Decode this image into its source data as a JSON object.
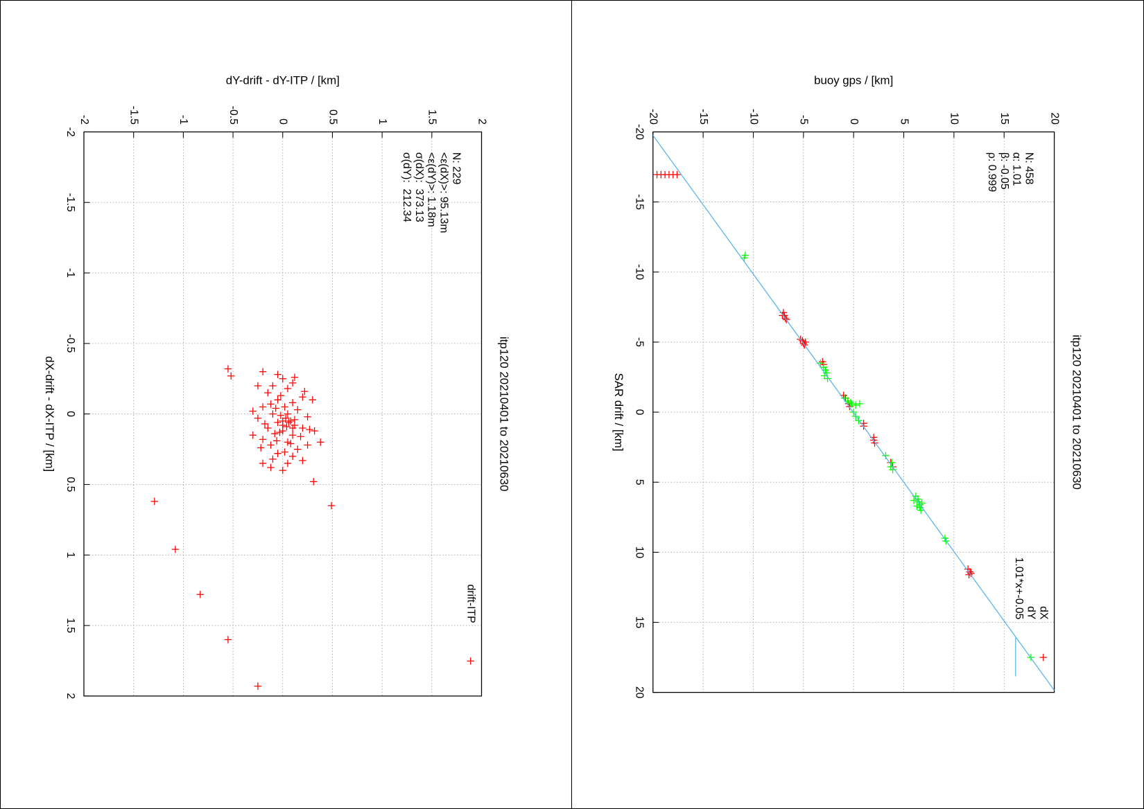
{
  "chart_data": [
    {
      "type": "scatter",
      "title": "itp120 20210401 to 20210630",
      "x_label": "dX-drift - dX-ITP / [km]",
      "y_label": "dY-drift - dY-ITP / [km]",
      "annotations": [
        "N: 229",
        "<ε(dX)>: 95.13m",
        "<ε(dY)>: 1.18m",
        "σ(dX):  373.13",
        "σ(dY):  212.34"
      ],
      "xlim": [
        -2,
        2
      ],
      "ylim": [
        -2,
        2
      ],
      "xticks": [
        -2,
        -1.5,
        -1,
        -0.5,
        0,
        0.5,
        1,
        1.5,
        2
      ],
      "yticks": [
        -2,
        -1.5,
        -1,
        -0.5,
        0,
        0.5,
        1,
        1.5,
        2
      ],
      "grid": true,
      "legend": "top right",
      "series": [
        {
          "name": "drift-ITP",
          "color": "#ff0000",
          "x": [
            -0.3,
            -0.25,
            -0.22,
            -0.2,
            -0.18,
            -0.15,
            -0.12,
            -0.1,
            -0.08,
            -0.05,
            -0.05,
            -0.03,
            0.0,
            0.0,
            0.02,
            0.03,
            0.05,
            0.05,
            0.06,
            0.08,
            0.1,
            0.1,
            0.12,
            0.14,
            0.15,
            0.18,
            0.2,
            0.22,
            0.25,
            0.28,
            0.3,
            0.32,
            0.35,
            -0.28,
            -0.26,
            -0.2,
            -0.16,
            -0.13,
            -0.1,
            -0.07,
            0.01,
            0.04,
            0.07,
            0.09,
            0.11,
            0.13,
            0.16,
            0.19,
            0.21,
            0.24,
            0.27,
            0.33,
            0.38,
            0.4,
            0.12,
            0.2,
            -0.02,
            0.06,
            0.08,
            0.03,
            -0.04,
            0.1,
            0.15,
            0.35,
            0.22,
            -0.32,
            -0.27,
            0.62,
            0.96,
            1.28,
            1.6,
            1.93,
            0.48,
            0.65
          ],
          "values": [
            -0.2,
            0.0,
            0.1,
            -0.1,
            0.05,
            -0.15,
            0.2,
            -0.05,
            0.1,
            -0.2,
            0.02,
            0.15,
            -0.1,
            0.05,
            0.25,
            -0.25,
            0.0,
            0.08,
            -0.05,
            0.12,
            -0.15,
            0.2,
            0.0,
            -0.08,
            0.1,
            -0.2,
            0.05,
            -0.12,
            0.15,
            -0.05,
            0.1,
            -0.1,
            0.05,
            -0.05,
            0.12,
            -0.25,
            0.22,
            -0.02,
            0.3,
            -0.12,
            -0.02,
            0.12,
            -0.18,
            0.04,
            0.27,
            -0.03,
            0.18,
            -0.06,
            0.08,
            -0.22,
            0.02,
            0.2,
            -0.12,
            0.0,
            0.32,
            0.38,
            -0.3,
            0.06,
            0.0,
            0.03,
            -0.07,
            0.1,
            -0.3,
            -0.2,
            0.25,
            -0.55,
            -0.52,
            -1.29,
            -1.08,
            -0.83,
            -0.55,
            -0.25,
            0.31,
            0.49
          ]
        }
      ]
    },
    {
      "type": "scatter",
      "title": "itp120 20210401 to 20210630",
      "x_label": "SAR drift / [km]",
      "y_label": "buoy gps / [km]",
      "annotations": [
        "N: 458",
        "α: 1.01",
        "β: -0.05",
        "ρ: 0.999"
      ],
      "xlim": [
        -20,
        20
      ],
      "ylim": [
        -20,
        20
      ],
      "xticks": [
        -20,
        -15,
        -10,
        -5,
        0,
        5,
        10,
        15,
        20
      ],
      "yticks": [
        -20,
        -15,
        -10,
        -5,
        0,
        5,
        10,
        15,
        20
      ],
      "grid": true,
      "legend": "top right",
      "series": [
        {
          "name": "dX",
          "color": "#ff0000",
          "x": [
            -16.95,
            -16.95,
            -16.95,
            -16.95,
            -16.95,
            -16.95,
            -7.1,
            -6.9,
            -6.7,
            -6.9,
            -6.6,
            -5.2,
            -5.1,
            -4.9,
            -5.0,
            -4.8,
            -3.6,
            -3.4,
            -1.2,
            -1.0,
            -0.6,
            -0.4,
            0.8,
            1.0,
            1.8,
            2.0,
            2.2,
            3.9,
            3.6,
            11.2,
            11.4,
            11.6,
            11.5
          ],
          "values": [
            -19.6,
            -19.2,
            -18.8,
            -18.4,
            -18.0,
            -17.6,
            -7.0,
            -6.9,
            -6.8,
            -7.1,
            -6.7,
            -5.3,
            -5.1,
            -5.0,
            -4.8,
            -4.9,
            -3.1,
            -3.0,
            -1.0,
            -0.8,
            -0.5,
            -0.4,
            1.0,
            1.0,
            2.0,
            2.0,
            2.1,
            3.9,
            3.7,
            11.4,
            11.6,
            11.5,
            11.7
          ]
        },
        {
          "name": "dY",
          "color": "#00ff00",
          "x": [
            -11.2,
            -11.0,
            -3.5,
            -3.2,
            -3.0,
            -2.8,
            -2.6,
            -2.4,
            -1.0,
            -0.8,
            -0.6,
            -0.5,
            -0.6,
            -0.7,
            0.0,
            0.3,
            0.6,
            3.1,
            3.6,
            3.9,
            4.1,
            6.0,
            6.2,
            6.4,
            6.6,
            6.8,
            6.5,
            6.3,
            7.0,
            6.7,
            9.0,
            9.2
          ],
          "values": [
            -10.8,
            -10.9,
            -3.3,
            -3.0,
            -2.8,
            -2.7,
            -2.9,
            -2.6,
            -0.9,
            -0.6,
            -0.2,
            0.2,
            0.6,
            -0.3,
            0.0,
            0.2,
            0.5,
            3.2,
            3.8,
            3.7,
            3.9,
            6.2,
            6.4,
            6.5,
            6.6,
            6.6,
            6.8,
            6.0,
            6.7,
            6.3,
            9.1,
            9.2
          ]
        },
        {
          "name": "1.01*x+-0.05",
          "color": "#56b4e9",
          "type": "line",
          "x": [
            -20,
            20
          ],
          "values": [
            -20.25,
            20.15
          ]
        }
      ]
    }
  ]
}
